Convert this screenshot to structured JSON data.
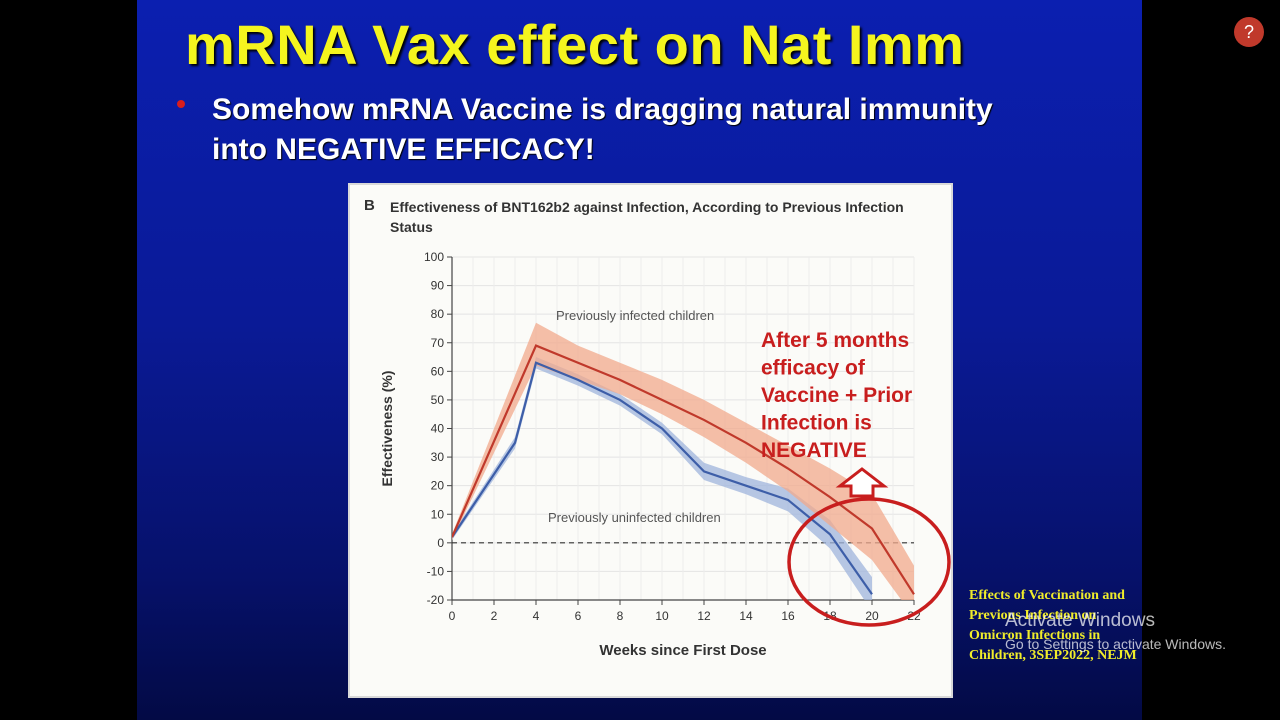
{
  "slide": {
    "title": "mRNA Vax effect on Nat Imm",
    "bullet": "Somehow mRNA Vaccine is dragging natural immunity into NEGATIVE EFFICACY!",
    "citation": "Effects of Vaccination and Previous Infection on Omicron Infections in Children, 3SEP2022, NEJM"
  },
  "figure": {
    "panel_letter": "B",
    "title": "Effectiveness of BNT162b2 against Infection, According to Previous Infection Status",
    "annotation": {
      "lines": [
        "After 5 months",
        "efficacy of",
        "Vaccine + Prior",
        "Infection is",
        "NEGATIVE"
      ],
      "color": "#c81e1e"
    }
  },
  "chart_data": {
    "type": "line",
    "title": "Effectiveness of BNT162b2 against Infection, According to Previous Infection Status",
    "xlabel": "Weeks since First Dose",
    "ylabel": "Effectiveness (%)",
    "xlim": [
      0,
      22
    ],
    "ylim": [
      -20,
      100
    ],
    "xticks": [
      0,
      2,
      4,
      6,
      8,
      10,
      12,
      14,
      16,
      18,
      20,
      22
    ],
    "yticks": [
      -20,
      -10,
      0,
      10,
      20,
      30,
      40,
      50,
      60,
      70,
      80,
      90,
      100
    ],
    "grid": true,
    "reference_line": 0,
    "series": [
      {
        "name": "Previously infected children",
        "color": "#c0392b",
        "band_color": "#f2a98c",
        "x": [
          0,
          4,
          6,
          8,
          10,
          12,
          14,
          16,
          18,
          20,
          22
        ],
        "y": [
          2,
          69,
          63,
          57,
          50,
          43,
          35,
          26,
          16,
          5,
          -18
        ],
        "lower": [
          1,
          62,
          57,
          52,
          45,
          37,
          28,
          18,
          6,
          -6,
          -26
        ],
        "upper": [
          3,
          77,
          69,
          63,
          57,
          50,
          42,
          34,
          26,
          17,
          -8
        ]
      },
      {
        "name": "Previously uninfected children",
        "color": "#3d5ea8",
        "band_color": "#9fb4dc",
        "x": [
          0,
          3,
          4,
          6,
          8,
          10,
          12,
          14,
          16,
          18,
          20
        ],
        "y": [
          2,
          35,
          63,
          57,
          50,
          40,
          25,
          20,
          15,
          3,
          -18
        ],
        "lower": [
          1,
          33,
          61,
          55,
          48,
          38,
          22,
          17,
          11,
          -2,
          -24
        ],
        "upper": [
          3,
          37,
          65,
          59,
          52,
          42,
          28,
          23,
          19,
          8,
          -12
        ]
      }
    ]
  },
  "overlay": {
    "activate_title": "Activate Windows",
    "activate_sub": "Go to Settings to activate Windows.",
    "help_label": "?"
  }
}
